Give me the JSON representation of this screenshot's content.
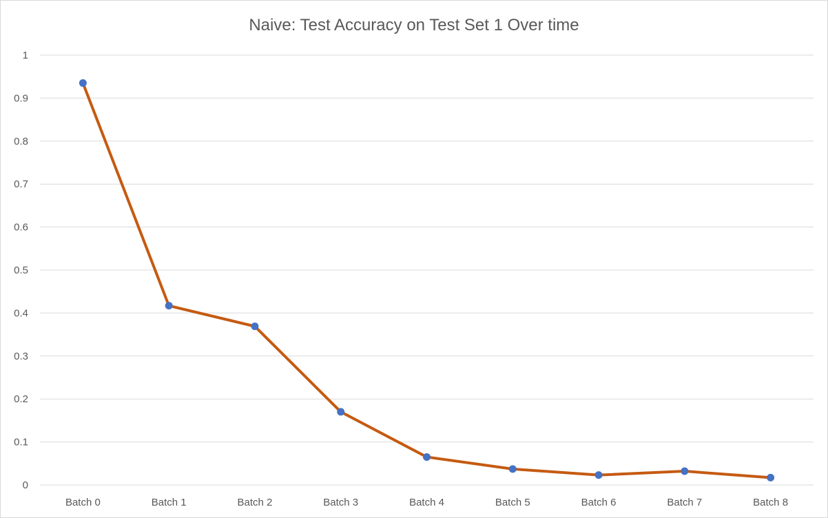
{
  "chart_data": {
    "type": "line",
    "title": "Naive: Test Accuracy on Test Set 1 Over time",
    "categories": [
      "Batch 0",
      "Batch 1",
      "Batch 2",
      "Batch 3",
      "Batch 4",
      "Batch 5",
      "Batch 6",
      "Batch 7",
      "Batch 8"
    ],
    "series": [
      {
        "values": [
          0.935,
          0.417,
          0.369,
          0.17,
          0.065,
          0.037,
          0.023,
          0.032,
          0.017
        ],
        "line_color": "#C55A11",
        "marker_color": "#4472C4"
      }
    ],
    "ylim": [
      0,
      1
    ],
    "yticks": [
      "0",
      "0.1",
      "0.2",
      "0.3",
      "0.4",
      "0.5",
      "0.6",
      "0.7",
      "0.8",
      "0.9",
      "1"
    ],
    "grid": true,
    "legend": "none",
    "xlabel": "",
    "ylabel": ""
  }
}
